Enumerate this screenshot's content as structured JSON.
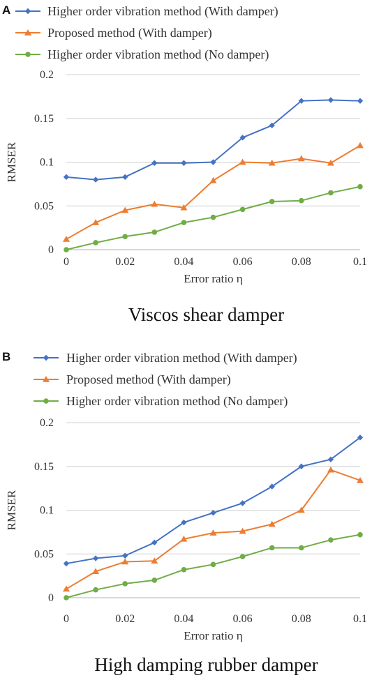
{
  "chart_data": [
    {
      "panel": "A",
      "type": "line",
      "caption": "Viscos shear damper",
      "xlabel": "Error ratio η",
      "ylabel": "RMSER",
      "x": [
        0,
        0.01,
        0.02,
        0.03,
        0.04,
        0.05,
        0.06,
        0.07,
        0.08,
        0.09,
        0.1
      ],
      "xticks": [
        "0",
        "0.02",
        "0.04",
        "0.06",
        "0.08",
        "0.1"
      ],
      "yticks": [
        "0",
        "0.05",
        "0.1",
        "0.15",
        "0.2"
      ],
      "xlim": [
        0,
        0.1
      ],
      "ylim": [
        0,
        0.2
      ],
      "grid": "horizontal",
      "legend_position": "top",
      "series": [
        {
          "name": "Higher order vibration method (With damper)",
          "color": "#4472C4",
          "marker": "diamond",
          "values": [
            0.083,
            0.08,
            0.083,
            0.099,
            0.099,
            0.1,
            0.128,
            0.142,
            0.17,
            0.171,
            0.17
          ]
        },
        {
          "name": "Proposed method (With damper)",
          "color": "#ED7D31",
          "marker": "triangle",
          "values": [
            0.012,
            0.031,
            0.045,
            0.052,
            0.048,
            0.079,
            0.1,
            0.099,
            0.104,
            0.099,
            0.119
          ]
        },
        {
          "name": "Higher order vibration method (No damper)",
          "color": "#70AD47",
          "marker": "circle",
          "values": [
            0.0,
            0.008,
            0.015,
            0.02,
            0.031,
            0.037,
            0.046,
            0.055,
            0.056,
            0.065,
            0.072
          ]
        }
      ]
    },
    {
      "panel": "B",
      "type": "line",
      "caption": "High damping rubber damper",
      "xlabel": "Error ratio η",
      "ylabel": "RMSER",
      "x": [
        0,
        0.01,
        0.02,
        0.03,
        0.04,
        0.05,
        0.06,
        0.07,
        0.08,
        0.09,
        0.1
      ],
      "xticks": [
        "0",
        "0.02",
        "0.04",
        "0.06",
        "0.08",
        "0.1"
      ],
      "yticks": [
        "0",
        "0.05",
        "0.1",
        "0.15",
        "0.2"
      ],
      "xlim": [
        0,
        0.1
      ],
      "ylim": [
        0,
        0.2
      ],
      "grid": "horizontal",
      "legend_position": "top",
      "series": [
        {
          "name": "Higher order vibration method (With damper)",
          "color": "#4472C4",
          "marker": "diamond",
          "values": [
            0.039,
            0.045,
            0.048,
            0.063,
            0.086,
            0.097,
            0.108,
            0.127,
            0.15,
            0.158,
            0.183
          ]
        },
        {
          "name": "Proposed method (With damper)",
          "color": "#ED7D31",
          "marker": "triangle",
          "values": [
            0.01,
            0.03,
            0.041,
            0.042,
            0.067,
            0.074,
            0.076,
            0.084,
            0.1,
            0.146,
            0.134
          ]
        },
        {
          "name": "Higher order vibration method (No damper)",
          "color": "#70AD47",
          "marker": "circle",
          "values": [
            0.0,
            0.009,
            0.016,
            0.02,
            0.032,
            0.038,
            0.047,
            0.057,
            0.057,
            0.066,
            0.072
          ]
        }
      ]
    }
  ]
}
